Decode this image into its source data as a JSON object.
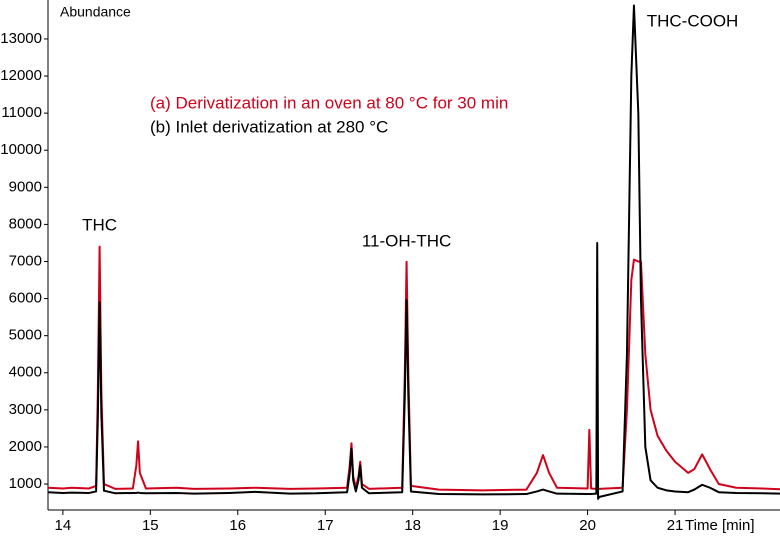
{
  "chart_data": {
    "type": "line",
    "y_label": "Abundance",
    "x_label": "Time [min]",
    "xlim": [
      13.83,
      22.2
    ],
    "ylim": [
      300,
      14050
    ],
    "xticks": [
      14,
      15,
      16,
      17,
      18,
      19,
      20,
      21
    ],
    "yticks": [
      1000,
      2000,
      3000,
      4000,
      5000,
      6000,
      7000,
      8000,
      9000,
      10000,
      11000,
      12000,
      13000
    ],
    "legend": "upper left",
    "x": [
      13.83,
      14.0,
      14.1,
      14.3,
      14.38,
      14.4,
      14.42,
      14.44,
      14.47,
      14.6,
      14.8,
      14.84,
      14.86,
      14.88,
      14.95,
      15.3,
      15.5,
      15.9,
      16.2,
      16.6,
      16.9,
      17.25,
      17.28,
      17.3,
      17.32,
      17.35,
      17.38,
      17.4,
      17.42,
      17.5,
      17.88,
      17.91,
      17.93,
      17.95,
      17.98,
      18.3,
      18.8,
      19.3,
      19.42,
      19.49,
      19.56,
      19.65,
      20.0,
      20.02,
      20.04,
      20.1,
      20.11,
      20.12,
      20.13,
      20.4,
      20.45,
      20.5,
      20.53,
      20.58,
      20.61,
      20.66,
      20.72,
      20.8,
      20.9,
      21.0,
      21.15,
      21.22,
      21.31,
      21.4,
      21.5,
      21.7,
      22.0,
      22.2
    ],
    "series": [
      {
        "name": "(a) Derivatization in an oven at 80 °C for 30 min",
        "color": "#d0021b",
        "values": [
          900,
          880,
          900,
          880,
          950,
          3500,
          7400,
          3500,
          1000,
          870,
          880,
          1500,
          2150,
          1300,
          880,
          900,
          870,
          880,
          900,
          870,
          880,
          900,
          1500,
          2100,
          1200,
          900,
          1200,
          1600,
          1000,
          870,
          900,
          4000,
          6990,
          4000,
          950,
          850,
          830,
          850,
          1300,
          1780,
          1300,
          900,
          880,
          2460,
          880,
          870,
          870,
          870,
          870,
          900,
          3000,
          6500,
          7050,
          7000,
          7000,
          4500,
          3000,
          2300,
          1900,
          1600,
          1300,
          1400,
          1800,
          1400,
          1000,
          900,
          880,
          860
        ]
      },
      {
        "name": "(b) Inlet derivatization at 280 °C",
        "color": "#000000",
        "values": [
          780,
          760,
          770,
          760,
          800,
          2800,
          5900,
          2900,
          820,
          750,
          760,
          760,
          770,
          760,
          750,
          760,
          740,
          760,
          790,
          740,
          750,
          780,
          1300,
          1950,
          1100,
          800,
          1100,
          1500,
          900,
          750,
          780,
          3400,
          5960,
          3400,
          800,
          730,
          720,
          730,
          800,
          850,
          800,
          740,
          730,
          730,
          730,
          740,
          7500,
          600,
          650,
          800,
          4500,
          12000,
          13900,
          11000,
          6000,
          2000,
          1100,
          900,
          830,
          800,
          780,
          850,
          980,
          900,
          780,
          760,
          750,
          740
        ]
      }
    ],
    "annotations": [
      {
        "text": "THC",
        "x": 14.42,
        "y": 7950
      },
      {
        "text": "11-OH-THC",
        "x": 17.93,
        "y": 7520
      },
      {
        "text": "THC-COOH",
        "x": 21.2,
        "y": 13450
      }
    ]
  }
}
